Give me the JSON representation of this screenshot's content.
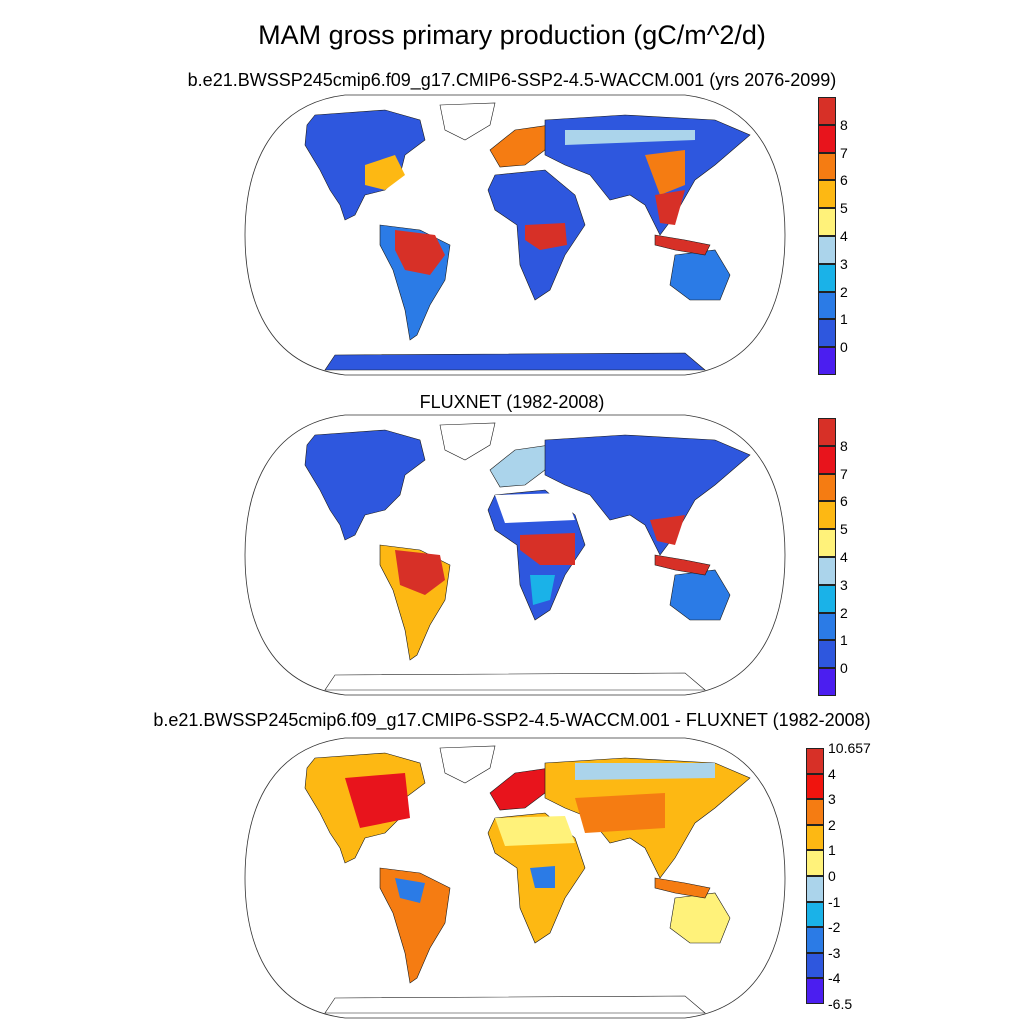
{
  "figure": {
    "title": "MAM gross primary production (gC/m^2/d)"
  },
  "panels": [
    {
      "id": "model",
      "title": "b.e21.BWSSP245cmip6.f09_g17.CMIP6-SSP2-4.5-WACCM.001 (yrs 2076-2099)",
      "colorbar": {
        "labels": [
          "8",
          "7",
          "6",
          "5",
          "4",
          "3",
          "2",
          "1",
          "0"
        ],
        "colors": [
          "#d73027",
          "#e8141c",
          "#f57c12",
          "#fdb813",
          "#fff27a",
          "#abd4eb",
          "#1ab2e8",
          "#2b7be6",
          "#2e57de",
          "#4b1ef0"
        ]
      }
    },
    {
      "id": "obs",
      "title": "FLUXNET (1982-2008)",
      "colorbar": {
        "labels": [
          "8",
          "7",
          "6",
          "5",
          "4",
          "3",
          "2",
          "1",
          "0"
        ],
        "colors": [
          "#d73027",
          "#e8141c",
          "#f57c12",
          "#fdb813",
          "#fff27a",
          "#abd4eb",
          "#1ab2e8",
          "#2b7be6",
          "#2e57de",
          "#4b1ef0"
        ]
      }
    },
    {
      "id": "diff",
      "title": "b.e21.BWSSP245cmip6.f09_g17.CMIP6-SSP2-4.5-WACCM.001 - FLUXNET (1982-2008)",
      "colorbar": {
        "labels": [
          "10.657",
          "4",
          "3",
          "2",
          "1",
          "0",
          "-1",
          "-2",
          "-3",
          "-4",
          "-6.5"
        ],
        "colors": [
          "#d73027",
          "#f0140e",
          "#f57c12",
          "#fdb813",
          "#fff27a",
          "#abd4eb",
          "#1ab2e8",
          "#2b7be6",
          "#2e57de",
          "#4b1ef0"
        ]
      }
    }
  ],
  "map_colors": {
    "ocean": "#ffffff",
    "coast": "#1a1a1a",
    "blue_low": "#2e57de",
    "blue_mid": "#2b7be6",
    "cyan": "#1ab2e8",
    "light_blue": "#abd4eb",
    "yellow": "#fff27a",
    "gold": "#fdb813",
    "orange": "#f57c12",
    "red": "#e8141c",
    "dark_red": "#d73027"
  }
}
